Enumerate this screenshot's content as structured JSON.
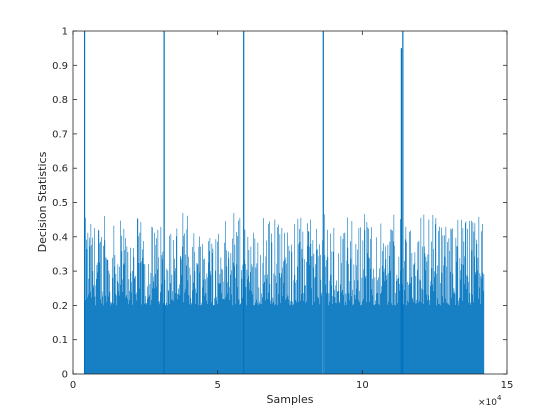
{
  "chart_data": {
    "type": "bar",
    "title": "",
    "xlabel": "Samples",
    "ylabel": "Decision Statistics",
    "x_exponent_label": "×10",
    "x_exponent_power": "4",
    "xlim": [
      0,
      150000
    ],
    "ylim": [
      0,
      1
    ],
    "x_ticks": [
      0,
      50000,
      100000,
      150000
    ],
    "x_tick_labels": [
      "0",
      "5",
      "10",
      "15"
    ],
    "y_ticks": [
      0,
      0.1,
      0.2,
      0.3,
      0.4,
      0.5,
      0.6,
      0.7,
      0.8,
      0.9,
      1
    ],
    "y_tick_labels": [
      "0",
      "0.1",
      "0.2",
      "0.3",
      "0.4",
      "0.5",
      "0.6",
      "0.7",
      "0.8",
      "0.9",
      "1"
    ],
    "grid": false,
    "bar_color": "#0072BD",
    "data_range_x": [
      4000,
      142000
    ],
    "noise_floor": 0.2,
    "noise_max": 0.47,
    "peaks": [
      {
        "x": 4000,
        "y": 1.0
      },
      {
        "x": 31500,
        "y": 1.0
      },
      {
        "x": 59000,
        "y": 1.0
      },
      {
        "x": 86500,
        "y": 1.0
      },
      {
        "x": 114000,
        "y": 1.0
      },
      {
        "x": 113500,
        "y": 0.95
      }
    ],
    "gaps": [
      86200,
      86800
    ]
  }
}
